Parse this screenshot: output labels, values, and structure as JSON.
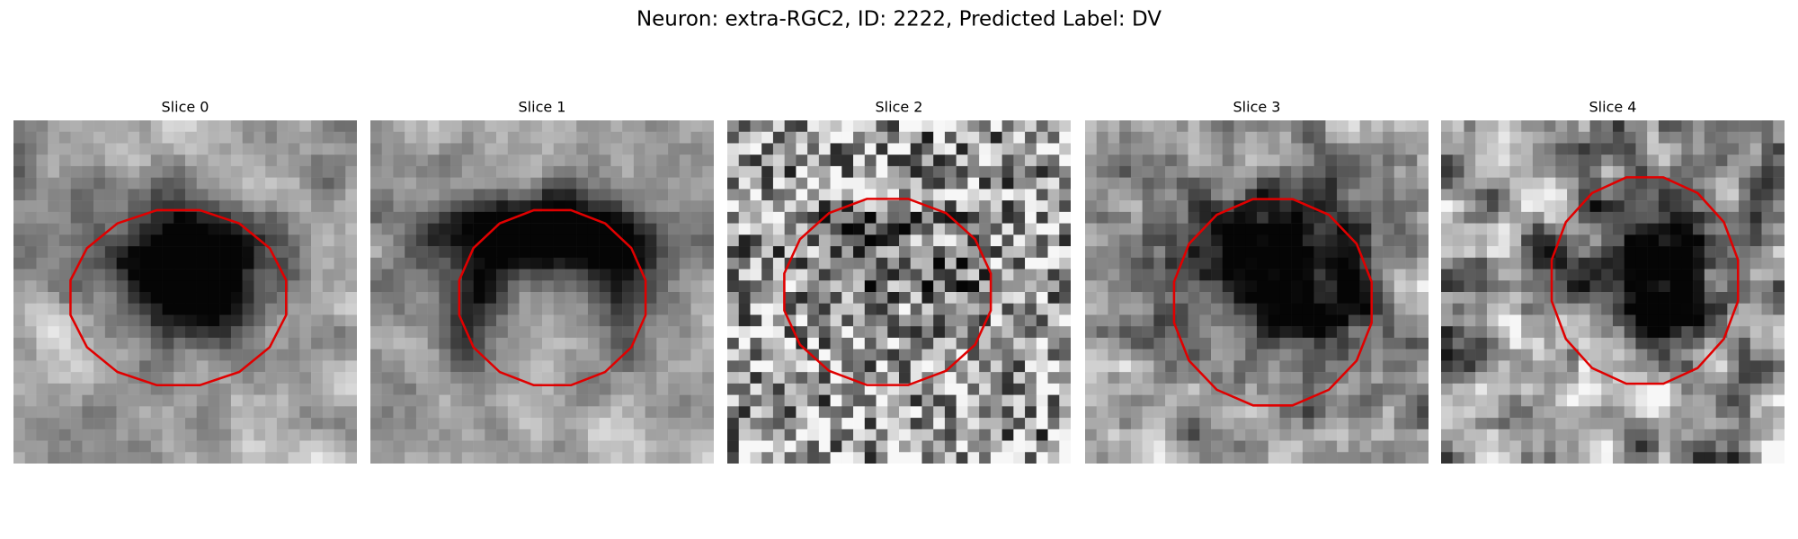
{
  "title": "Neuron: extra-RGC2, ID: 2222, Predicted Label: DV",
  "panels": [
    {
      "title": "Slice 0"
    },
    {
      "title": "Slice 1"
    },
    {
      "title": "Slice 2"
    },
    {
      "title": "Slice 3"
    },
    {
      "title": "Slice 4"
    }
  ]
}
